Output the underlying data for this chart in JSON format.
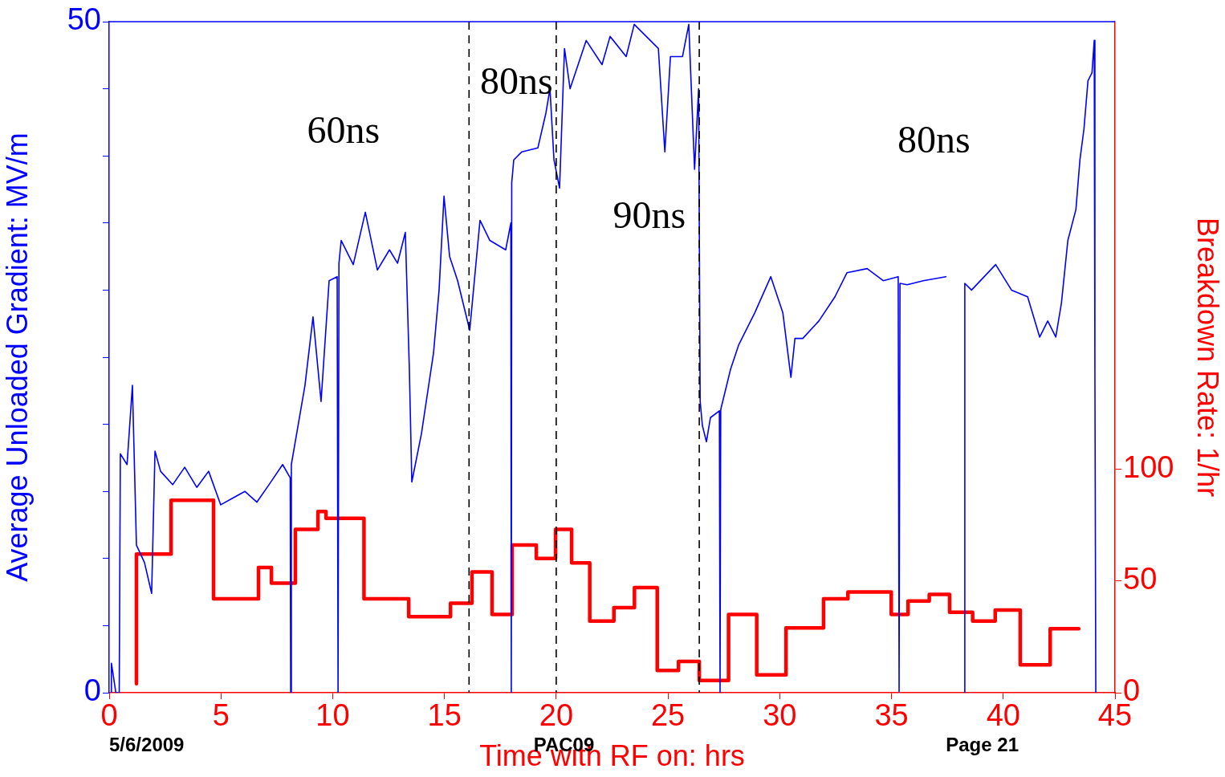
{
  "chart_data": {
    "type": "line",
    "xlabel": "Time with RF on: hrs",
    "ylabel": "Average Unloaded Gradient: MV/m",
    "y2label": "Breakdown Rate: 1/hr",
    "xlim": [
      0,
      45
    ],
    "xticks": [
      0,
      5,
      10,
      15,
      20,
      25,
      30,
      35,
      40,
      45
    ],
    "ylim": [
      0,
      50
    ],
    "yticks": [
      0,
      {
        "value": 5,
        "label": null
      },
      {
        "value": 10,
        "label": null
      },
      {
        "value": 15,
        "label": null
      },
      {
        "value": 20,
        "label": null
      },
      {
        "value": 25,
        "label": null
      },
      {
        "value": 30,
        "label": null
      },
      {
        "value": 35,
        "label": null
      },
      {
        "value": 40,
        "label": null
      },
      {
        "value": 45,
        "label": null
      },
      50
    ],
    "y2lim": [
      0,
      300
    ],
    "y2ticks": [
      0,
      50,
      100
    ],
    "grid": false,
    "legend": false,
    "marker": "none",
    "line_style": "solid",
    "series": [
      {
        "color": "#0000ff",
        "x": [
          0.1,
          0.1,
          0.3,
          0.45,
          0.5,
          0.8,
          1.04,
          1.22,
          1.58,
          1.9,
          2.05,
          2.3,
          2.84,
          3.38,
          3.92,
          4.45,
          4.99,
          5.53,
          6.07,
          6.61,
          7.15,
          7.76,
          8.1,
          8.12,
          8.15,
          8.76,
          9.12,
          9.48,
          9.84,
          10.2,
          10.24,
          10.28,
          10.38,
          10.92,
          11.46,
          12.0,
          12.54,
          12.9,
          13.25,
          13.43,
          13.54,
          13.97,
          14.51,
          14.76,
          14.98,
          15.23,
          15.59,
          16.13,
          16.59,
          17.03,
          17.74,
          17.97,
          17.99,
          18.01,
          18.1,
          18.46,
          19.18,
          19.54,
          19.72,
          19.9,
          20.15,
          20.37,
          20.62,
          21.34,
          22.05,
          22.41,
          23.13,
          23.49,
          23.85,
          24.57,
          24.86,
          25.11,
          25.65,
          25.93,
          26.19,
          26.37,
          26.44,
          26.54,
          26.72,
          26.9,
          27.3,
          27.33,
          27.36,
          27.8,
          28.16,
          28.88,
          29.6,
          30.14,
          30.5,
          30.68,
          31.03,
          31.75,
          32.47,
          33.01,
          33.91,
          34.63,
          35.3,
          35.34,
          35.38,
          35.7,
          36.42,
          37.43,
          37.8,
          38.25,
          38.28,
          38.58,
          39.66,
          40.37,
          41.09,
          41.63,
          41.99,
          42.35,
          42.6,
          42.89,
          43.25,
          43.43,
          43.61,
          43.79,
          43.97,
          44.07,
          44.1,
          44.14
        ],
        "values": [
          0,
          2.2,
          0,
          0,
          17.8,
          17,
          22.9,
          11,
          9.7,
          7.4,
          18,
          16.5,
          15.5,
          16.8,
          15.3,
          16.5,
          14,
          14.5,
          15,
          14.2,
          15.5,
          17,
          16,
          0,
          17,
          22.9,
          28,
          21.7,
          30.7,
          31,
          0,
          32,
          33.7,
          31.9,
          35.8,
          31.5,
          33,
          32,
          34.3,
          24.1,
          15.7,
          19.3,
          25.3,
          30,
          37,
          32.5,
          30.7,
          27,
          35.2,
          33.7,
          33,
          35,
          0,
          38,
          39.7,
          40.3,
          40.6,
          43.2,
          45,
          39.7,
          37.6,
          48,
          45,
          48.6,
          46.8,
          48.9,
          47.4,
          49.8,
          49.2,
          48,
          40.3,
          47.4,
          47.4,
          49.8,
          39,
          45,
          21.7,
          19.9,
          18.7,
          20.5,
          21,
          0,
          21.1,
          24.1,
          25.9,
          28.3,
          31,
          28.3,
          23.5,
          26.4,
          26.4,
          27.7,
          29.5,
          31.3,
          31.6,
          30.7,
          31,
          0,
          30.5,
          30.4,
          30.7,
          31,
          null,
          0,
          30.5,
          30,
          31.9,
          30,
          29.5,
          26.5,
          27.7,
          26.5,
          29,
          33.7,
          36,
          39.7,
          42,
          45.6,
          46.2,
          48.6,
          24.1,
          0
        ]
      },
      {
        "type": "step",
        "axis": "y2",
        "color": "#ff0000",
        "x": [
          1.22,
          2.77,
          4.67,
          6.68,
          7.26,
          8.33,
          9.34,
          9.7,
          11.4,
          13.4,
          15.27,
          16.23,
          17.13,
          18.03,
          19.11,
          19.97,
          20.69,
          21.5,
          22.58,
          23.5,
          24.52,
          25.47,
          26.4,
          27.71,
          28.97,
          30.28,
          31.96,
          33.05,
          34.99,
          35.74,
          36.69,
          37.6,
          38.63,
          39.64,
          40.76,
          42.1,
          42.86,
          43.38
        ],
        "values": [
          4,
          62,
          86,
          42,
          56,
          49,
          73,
          81,
          78,
          42,
          34,
          40,
          54,
          35,
          66,
          60,
          73,
          58,
          32,
          38,
          47,
          10,
          14,
          5.5,
          35,
          8,
          29,
          42,
          45,
          35,
          41,
          44,
          36,
          32,
          37,
          12.5,
          28.6,
          28.6
        ]
      }
    ],
    "ref_lines": [
      {
        "axis": "x",
        "value": 16.1,
        "color": "#000000",
        "line_style": "dashed"
      },
      {
        "axis": "x",
        "value": 20,
        "color": "#000000",
        "line_style": "dashed"
      },
      {
        "axis": "x",
        "value": 26.4,
        "color": "#000000",
        "line_style": "dashed"
      }
    ],
    "annotations": [
      "60ns",
      "80ns",
      "90ns",
      "80ns",
      "5/6/2009",
      "PAC09",
      "Page 21"
    ]
  }
}
